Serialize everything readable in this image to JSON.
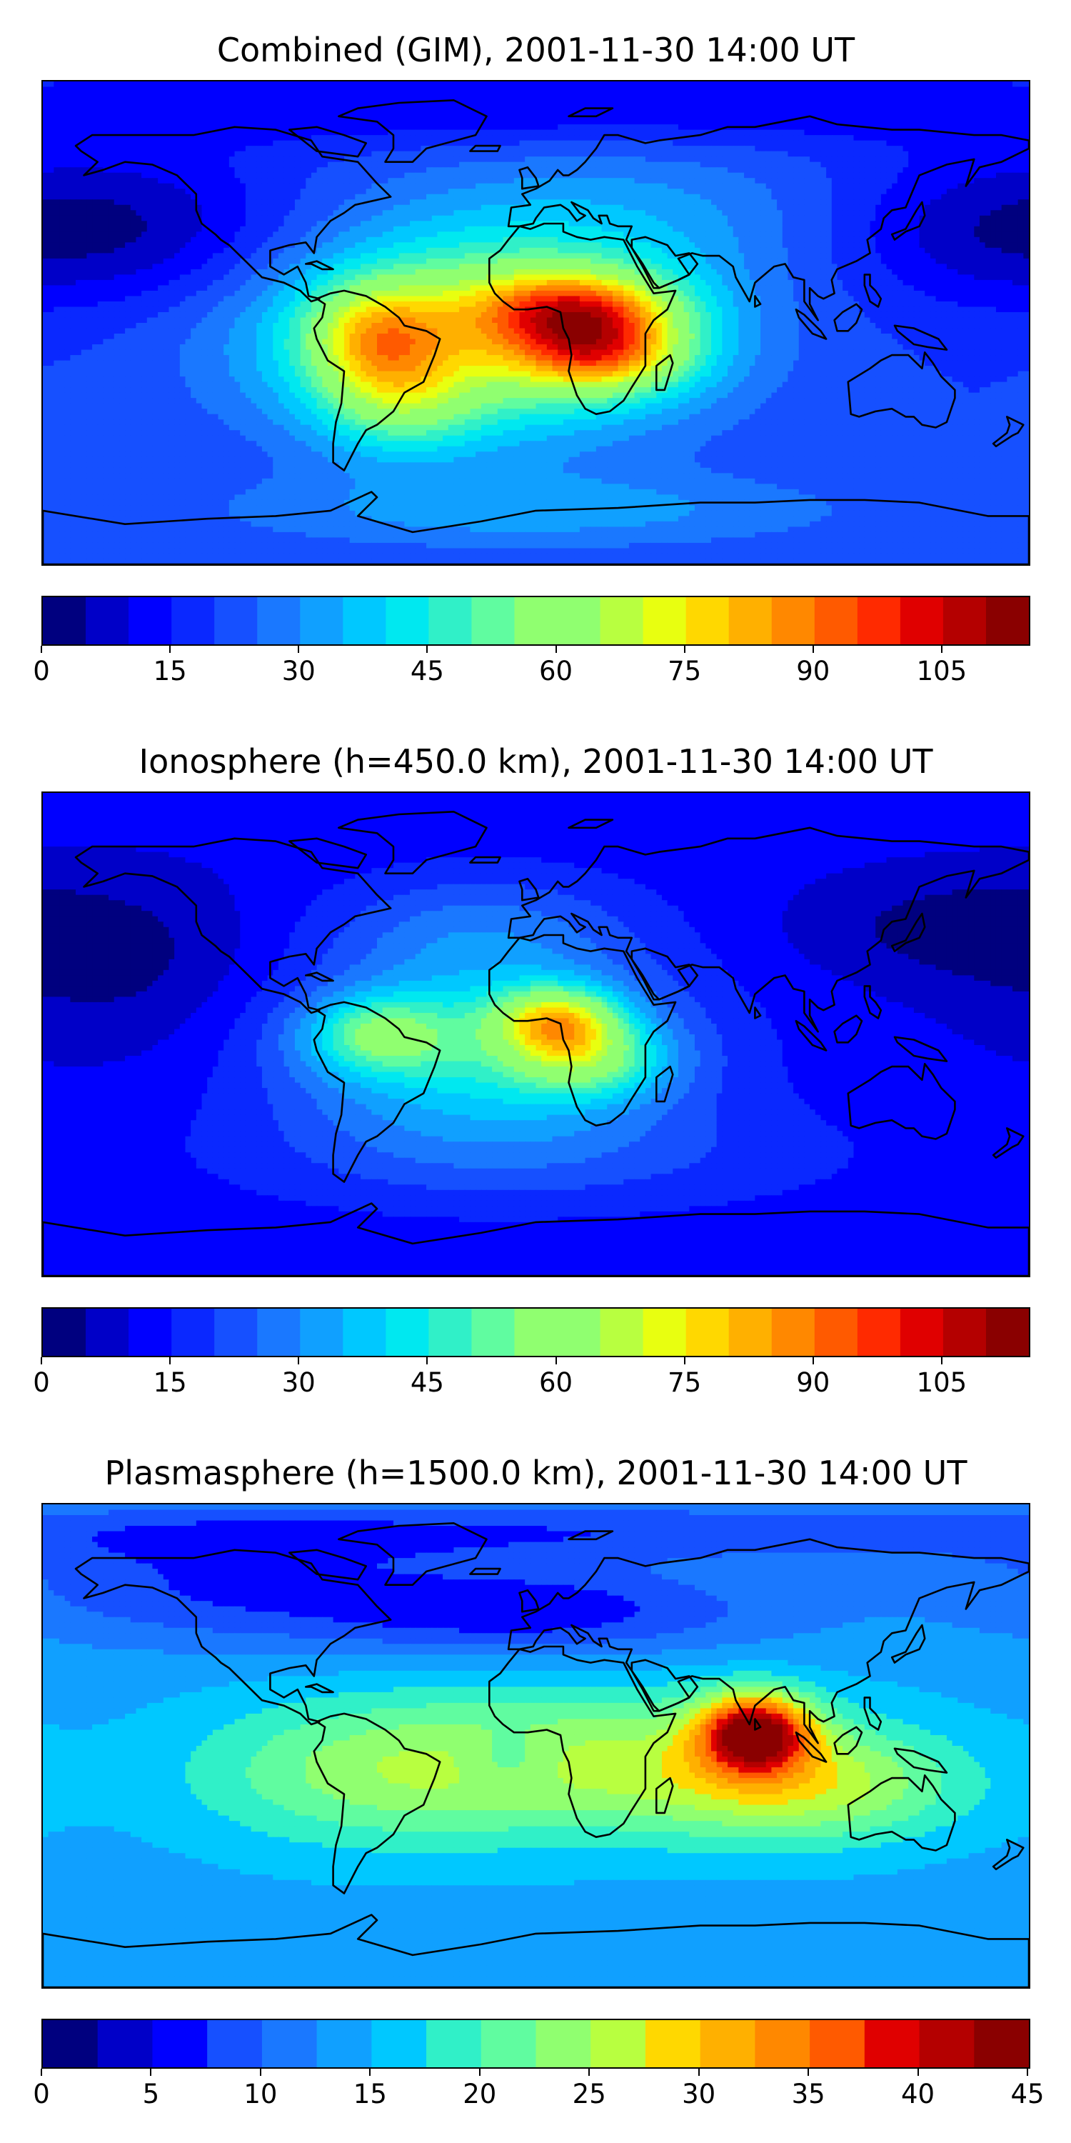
{
  "chart_data": [
    {
      "type": "heatmap",
      "title": "Combined (GIM), 2001-11-30 14:00 UT",
      "colorbar": {
        "min": 0,
        "max": 115,
        "step": 5,
        "ticks": [
          0,
          15,
          30,
          45,
          60,
          75,
          90,
          105
        ],
        "tick_labels": [
          "0",
          "15",
          "30",
          "45",
          "60",
          "75",
          "90",
          "105"
        ]
      },
      "field": {
        "base": 20,
        "features": [
          {
            "lon": -20,
            "lat": -5,
            "amp": 45,
            "slon": 55,
            "slat": 26
          },
          {
            "lon": 15,
            "lat": 5,
            "amp": 45,
            "slon": 25,
            "slat": 10
          },
          {
            "lon": 25,
            "lat": -12,
            "amp": 40,
            "slon": 22,
            "slat": 10
          },
          {
            "lon": -58,
            "lat": -5,
            "amp": 30,
            "slon": 18,
            "slat": 14
          },
          {
            "lon": -50,
            "lat": -30,
            "amp": 20,
            "slon": 20,
            "slat": 14
          },
          {
            "lon": 30,
            "lat": 40,
            "amp": 10,
            "slon": 60,
            "slat": 20
          },
          {
            "lon": -140,
            "lat": 35,
            "amp": -12,
            "slon": 40,
            "slat": 20
          },
          {
            "lon": 160,
            "lat": 35,
            "amp": -12,
            "slon": 40,
            "slat": 20
          },
          {
            "lon": 0,
            "lat": 80,
            "amp": -10,
            "slon": 200,
            "slat": 10
          },
          {
            "lon": 0,
            "lat": -70,
            "amp": 12,
            "slon": 80,
            "slat": 10
          }
        ]
      }
    },
    {
      "type": "heatmap",
      "title": "Ionosphere  (h=450.0 km), 2001-11-30 14:00 UT",
      "colorbar": {
        "min": 0,
        "max": 115,
        "step": 5,
        "ticks": [
          0,
          15,
          30,
          45,
          60,
          75,
          90,
          105
        ],
        "tick_labels": [
          "0",
          "15",
          "30",
          "45",
          "60",
          "75",
          "90",
          "105"
        ]
      },
      "field": {
        "base": 12,
        "features": [
          {
            "lon": -20,
            "lat": -5,
            "amp": 32,
            "slon": 50,
            "slat": 24
          },
          {
            "lon": 8,
            "lat": 5,
            "amp": 42,
            "slon": 16,
            "slat": 9
          },
          {
            "lon": 20,
            "lat": -10,
            "amp": 25,
            "slon": 20,
            "slat": 10
          },
          {
            "lon": -58,
            "lat": 0,
            "amp": 25,
            "slon": 18,
            "slat": 10
          },
          {
            "lon": -20,
            "lat": 40,
            "amp": 12,
            "slon": 40,
            "slat": 15
          },
          {
            "lon": -150,
            "lat": 25,
            "amp": -8,
            "slon": 40,
            "slat": 25
          },
          {
            "lon": 150,
            "lat": 40,
            "amp": -8,
            "slon": 40,
            "slat": 15
          },
          {
            "lon": 0,
            "lat": -45,
            "amp": 8,
            "slon": 80,
            "slat": 15
          }
        ]
      }
    },
    {
      "type": "heatmap",
      "title": "Plasmasphere (h=1500.0 km), 2001-11-30 14:00 UT",
      "colorbar": {
        "min": 0,
        "max": 45,
        "step": 2.5,
        "ticks": [
          0,
          5,
          10,
          15,
          20,
          25,
          30,
          35,
          40,
          45
        ],
        "tick_labels": [
          "0",
          "5",
          "10",
          "15",
          "20",
          "25",
          "30",
          "35",
          "40",
          "45"
        ]
      },
      "field": {
        "base": 14,
        "features": [
          {
            "lon": 80,
            "lat": 5,
            "amp": 26,
            "slon": 14,
            "slat": 10
          },
          {
            "lon": 100,
            "lat": -15,
            "amp": 10,
            "slon": 40,
            "slat": 15
          },
          {
            "lon": 30,
            "lat": -5,
            "amp": 9,
            "slon": 60,
            "slat": 20
          },
          {
            "lon": -60,
            "lat": -10,
            "amp": 8,
            "slon": 50,
            "slat": 20
          },
          {
            "lon": -10,
            "lat": -5,
            "amp": -4,
            "slon": 12,
            "slat": 8
          },
          {
            "lon": 0,
            "lat": 50,
            "amp": -8,
            "slon": 60,
            "slat": 12
          },
          {
            "lon": -120,
            "lat": 60,
            "amp": -6,
            "slon": 60,
            "slat": 15
          },
          {
            "lon": 0,
            "lat": 80,
            "amp": -6,
            "slon": 200,
            "slat": 8
          }
        ]
      }
    }
  ],
  "colormap": [
    "#00007f",
    "#0000c8",
    "#0000ff",
    "#0a28ff",
    "#1650ff",
    "#1a78ff",
    "#10a0ff",
    "#00c8ff",
    "#00e8f0",
    "#30f0c8",
    "#60fca0",
    "#90ff70",
    "#b8ff40",
    "#e8ff10",
    "#ffd800",
    "#ffb000",
    "#ff8800",
    "#ff5a00",
    "#ff2a00",
    "#e00000",
    "#b40000",
    "#8a0000"
  ],
  "coastline_color": "#000000"
}
